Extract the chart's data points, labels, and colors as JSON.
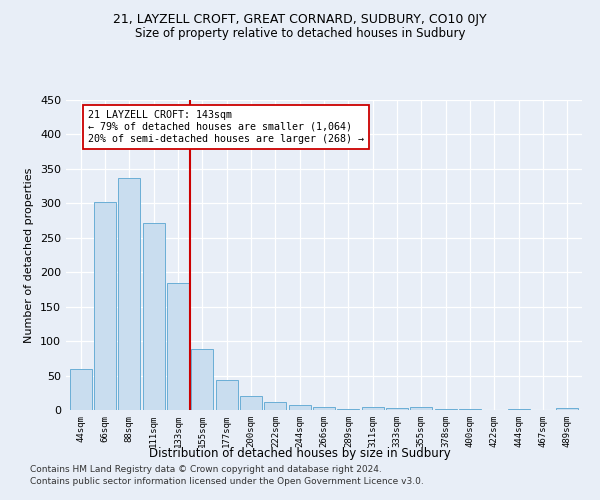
{
  "title1": "21, LAYZELL CROFT, GREAT CORNARD, SUDBURY, CO10 0JY",
  "title2": "Size of property relative to detached houses in Sudbury",
  "xlabel": "Distribution of detached houses by size in Sudbury",
  "ylabel": "Number of detached properties",
  "bar_labels": [
    "44sqm",
    "66sqm",
    "88sqm",
    "111sqm",
    "133sqm",
    "155sqm",
    "177sqm",
    "200sqm",
    "222sqm",
    "244sqm",
    "266sqm",
    "289sqm",
    "311sqm",
    "333sqm",
    "355sqm",
    "378sqm",
    "400sqm",
    "422sqm",
    "444sqm",
    "467sqm",
    "489sqm"
  ],
  "bar_values": [
    60,
    302,
    337,
    272,
    185,
    89,
    44,
    21,
    11,
    7,
    4,
    1,
    4,
    3,
    4,
    2,
    1,
    0,
    1,
    0,
    3
  ],
  "bar_color": "#c9ddef",
  "bar_edge_color": "#6aaed6",
  "vline_color": "#cc0000",
  "annotation_text": "21 LAYZELL CROFT: 143sqm\n← 79% of detached houses are smaller (1,064)\n20% of semi-detached houses are larger (268) →",
  "annotation_box_color": "#ffffff",
  "annotation_box_edge": "#cc0000",
  "ylim": [
    0,
    450
  ],
  "yticks": [
    0,
    50,
    100,
    150,
    200,
    250,
    300,
    350,
    400,
    450
  ],
  "footer1": "Contains HM Land Registry data © Crown copyright and database right 2024.",
  "footer2": "Contains public sector information licensed under the Open Government Licence v3.0.",
  "bg_color": "#e8eef7",
  "plot_bg_color": "#e8eef7"
}
